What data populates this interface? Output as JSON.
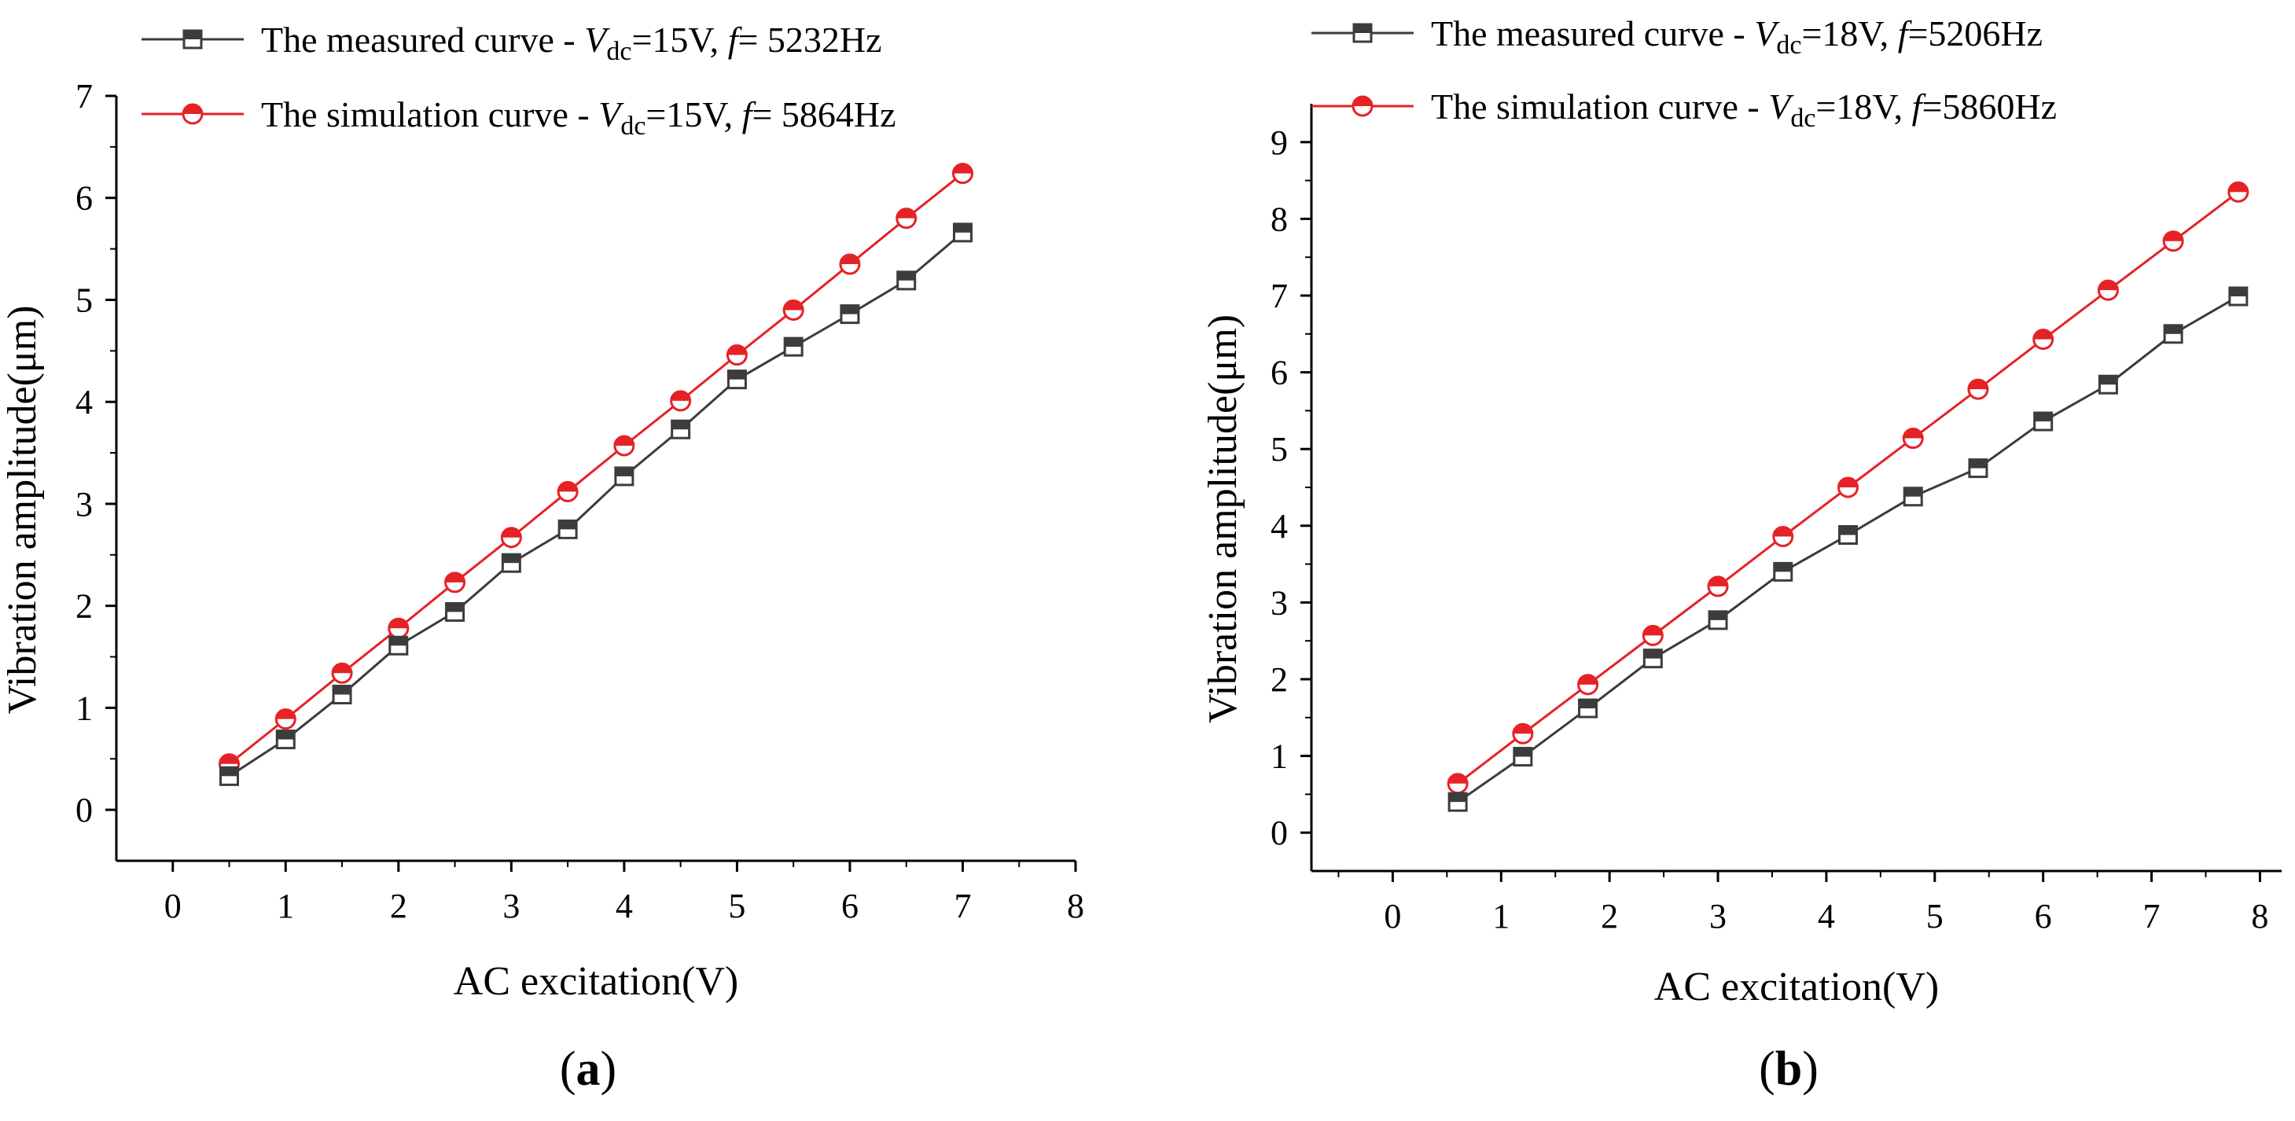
{
  "colors": {
    "measured": "#3c3c3c",
    "simulation": "#e52226",
    "axis": "#000000"
  },
  "chart_data": [
    {
      "type": "line",
      "panel_label": "a",
      "xlabel": "AC excitation(V)",
      "ylabel": "Vibration amplitude(μm)",
      "xlim": [
        -0.5,
        8
      ],
      "ylim": [
        -0.5,
        7
      ],
      "xticks": [
        0,
        1,
        2,
        3,
        4,
        5,
        6,
        7,
        8
      ],
      "yticks": [
        0,
        1,
        2,
        3,
        4,
        5,
        6,
        7
      ],
      "legend_position": "top-left",
      "legend": [
        {
          "prefix": "The measured curve - ",
          "var": "V",
          "sub": "dc",
          "mid": "=15V, ",
          "fvar": "f",
          "freq": "= 5232Hz",
          "marker": "square"
        },
        {
          "prefix": "The simulation curve - ",
          "var": "V",
          "sub": "dc",
          "mid": "=15V, ",
          "fvar": "f",
          "freq": "= 5864Hz",
          "marker": "circle"
        }
      ],
      "series": [
        {
          "name": "The measured curve",
          "marker": "square",
          "x": [
            0.5,
            1,
            1.5,
            2,
            2.5,
            3,
            3.5,
            4,
            4.5,
            5,
            5.5,
            6,
            6.5,
            7
          ],
          "values": [
            0.33,
            0.69,
            1.13,
            1.61,
            1.94,
            2.42,
            2.75,
            3.27,
            3.73,
            4.22,
            4.54,
            4.86,
            5.19,
            5.66
          ]
        },
        {
          "name": "The simulation curve",
          "marker": "circle",
          "x": [
            0.5,
            1,
            1.5,
            2,
            2.5,
            3,
            3.5,
            4,
            4.5,
            5,
            5.5,
            6,
            6.5,
            7
          ],
          "values": [
            0.45,
            0.89,
            1.34,
            1.78,
            2.23,
            2.67,
            3.12,
            3.57,
            4.01,
            4.46,
            4.9,
            5.35,
            5.8,
            6.24
          ]
        }
      ]
    },
    {
      "type": "line",
      "panel_label": "b",
      "xlabel": "AC excitation(V)",
      "ylabel": "Vibration amplitude(μm)",
      "xlim": [
        -0.75,
        8.2
      ],
      "ylim": [
        -0.5,
        9.5
      ],
      "xticks": [
        0,
        1,
        2,
        3,
        4,
        5,
        6,
        7,
        8
      ],
      "yticks": [
        0,
        1,
        2,
        3,
        4,
        5,
        6,
        7,
        8,
        9
      ],
      "legend_position": "top-left",
      "legend": [
        {
          "prefix": "The measured curve - ",
          "var": "V",
          "sub": "dc",
          "mid": "=18V, ",
          "fvar": "f",
          "freq": "=5206Hz",
          "marker": "square"
        },
        {
          "prefix": "The simulation curve - ",
          "var": "V",
          "sub": "dc",
          "mid": "=18V, ",
          "fvar": "f",
          "freq": "=5860Hz",
          "marker": "circle"
        }
      ],
      "series": [
        {
          "name": "The measured curve",
          "marker": "square",
          "x": [
            0.6,
            1.2,
            1.8,
            2.4,
            3.0,
            3.6,
            4.2,
            4.8,
            5.4,
            6.0,
            6.6,
            7.2,
            7.8
          ],
          "values": [
            0.4,
            0.99,
            1.62,
            2.27,
            2.77,
            3.4,
            3.88,
            4.38,
            4.75,
            5.36,
            5.84,
            6.5,
            6.99
          ]
        },
        {
          "name": "The simulation curve",
          "marker": "circle",
          "x": [
            0.6,
            1.2,
            1.8,
            2.4,
            3.0,
            3.6,
            4.2,
            4.8,
            5.4,
            6.0,
            6.6,
            7.2,
            7.8
          ],
          "values": [
            0.64,
            1.29,
            1.93,
            2.57,
            3.21,
            3.86,
            4.5,
            5.14,
            5.78,
            6.43,
            7.07,
            7.71,
            8.35
          ]
        }
      ]
    }
  ]
}
